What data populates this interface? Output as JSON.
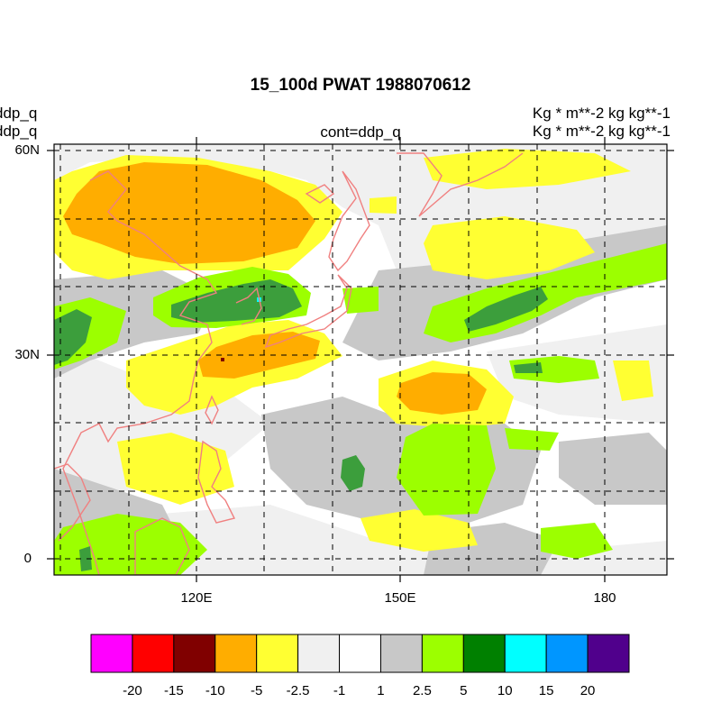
{
  "title": "15_100d PWAT  1988070612",
  "left_strings": [
    "ddp_q",
    "ddp_q"
  ],
  "center_string": "cont=ddp_q",
  "right_strings": [
    "Kg  * m**-2 kg kg**-1",
    "Kg  * m**-2 kg kg**-1"
  ],
  "chart_data": {
    "type": "heatmap",
    "variable": "ddp_q",
    "lat_range": [
      -2,
      61
    ],
    "lon_range": [
      100,
      187
    ],
    "lat_ticks": [
      {
        "label": "60N",
        "value": 60
      },
      {
        "label": "30N",
        "value": 30
      },
      {
        "label": "0",
        "value": 0
      }
    ],
    "lon_ticks": [
      {
        "label": "120E",
        "value": 120
      },
      {
        "label": "150E",
        "value": 150
      },
      {
        "label": "180",
        "value": 180
      }
    ],
    "grid": true,
    "coastlines": true,
    "contour_levels": [
      -20,
      -15,
      -10,
      -5,
      -2.5,
      -1,
      1,
      2.5,
      5,
      10,
      15,
      20
    ],
    "level_labels": [
      "-20",
      "-15",
      "-10",
      "-5",
      "-2.5",
      "-1",
      "1",
      "2.5",
      "5",
      "10",
      "15",
      "20"
    ],
    "colors": [
      "#ff00ff",
      "#ff0000",
      "#800000",
      "#ffad00",
      "#ffff32",
      "#f0f0f0",
      "#ffffff",
      "#c8c8c8",
      "#9cff00",
      "#008000",
      "#00ffff",
      "#0096ff",
      "#50008c"
    ],
    "shaded_regions": [
      {
        "level": "-5",
        "lon": 120,
        "lat": 53
      },
      {
        "level": "-5",
        "lon": 130,
        "lat": 30
      },
      {
        "level": "-5",
        "lon": 149,
        "lat": 24
      },
      {
        "level": "5",
        "lon": 125,
        "lat": 39
      },
      {
        "level": "5",
        "lon": 101,
        "lat": 31
      },
      {
        "level": "5",
        "lon": 165,
        "lat": 37
      },
      {
        "level": "5",
        "lon": 147,
        "lat": 14
      },
      {
        "level": "2.5",
        "lon": 178,
        "lat": 40
      },
      {
        "level": "2.5",
        "lon": 146,
        "lat": 16
      },
      {
        "level": "-2.5",
        "lon": 160,
        "lat": 54
      },
      {
        "level": "-2.5",
        "lon": 155,
        "lat": 6
      }
    ]
  }
}
